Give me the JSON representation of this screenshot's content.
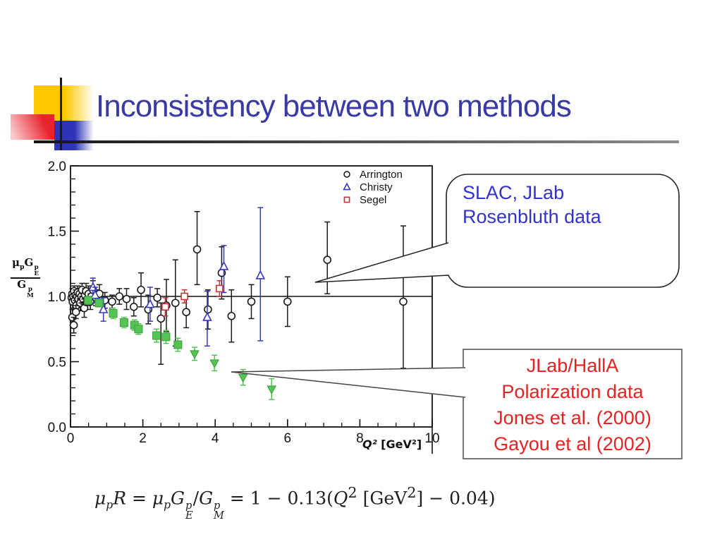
{
  "slide": {
    "title": "Inconsistency between two methods",
    "background_color": "#ffffff",
    "title_color": "#3a3aa4"
  },
  "callouts": {
    "rosenbluth": {
      "line1": "SLAC, JLab",
      "line2": "Rosenbluth data",
      "text_color": "#3333cc"
    },
    "polarization": {
      "line1": "JLab/HallA",
      "line2": "Polarization data",
      "line3": "Jones et al. (2000)",
      "line4": "Gayou et al (2002)",
      "text_color": "#e62222"
    }
  },
  "formula": {
    "p1": "μ",
    "p1sub": "p",
    "p2": "R = ",
    "p3": "μ",
    "p3sub": "p",
    "p4": "G",
    "p4sup": "p",
    "p4sub": "E",
    "p5": "/",
    "p6": "G",
    "p6sup": "p",
    "p6sub": "M",
    "p7": " = 1 − 0.13(",
    "p8": "Q",
    "p8sup": "2",
    "p9": " [GeV",
    "p9sup": "2",
    "p10": "] − 0.04)"
  },
  "ylabel_parts": {
    "num1": "μ",
    "num1sub": "p",
    "num2": "G",
    "num2sup": "p",
    "num2sub": "E",
    "den1": "G",
    "den1sup": "p",
    "den1sub": "M"
  },
  "xlabel_parts": {
    "q": "Q²",
    "unit": " [GeV²]"
  },
  "chart_data": {
    "type": "scatter",
    "title": "",
    "xlabel": "Q² [GeV²]",
    "ylabel": "μp GEp / GMp",
    "xlim": [
      0,
      10
    ],
    "ylim": [
      0,
      2
    ],
    "xticks": [
      0,
      2,
      4,
      6,
      8,
      10
    ],
    "xtick_labels": [
      "0",
      "2",
      "4",
      "6",
      "8",
      "10"
    ],
    "yticks": [
      0,
      0.5,
      1.0,
      1.5,
      2.0
    ],
    "ytick_labels": [
      "0.0",
      "0.5",
      "1.0",
      "1.5",
      "2.0"
    ],
    "minor_x_step": 0.5,
    "minor_y_step": 0.1,
    "grid": false,
    "ref_line": 1.0,
    "legend_position": "top-center-inside",
    "legend": [
      "Arrington",
      "Christy",
      "Segel"
    ],
    "series": [
      {
        "name": "Arrington",
        "marker": "circle",
        "color": "#1a1a1a",
        "open": true,
        "in_legend": true,
        "points": [
          [
            0.03,
            0.99,
            0.04,
            0.04
          ],
          [
            0.05,
            1.02,
            0.04,
            0.04
          ],
          [
            0.06,
            0.96,
            0.05,
            0.05
          ],
          [
            0.08,
            1.0,
            0.03,
            0.03
          ],
          [
            0.1,
            1.04,
            0.04,
            0.04
          ],
          [
            0.12,
            0.97,
            0.05,
            0.05
          ],
          [
            0.14,
            1.01,
            0.04,
            0.04
          ],
          [
            0.16,
            0.93,
            0.06,
            0.06
          ],
          [
            0.18,
            1.0,
            0.04,
            0.04
          ],
          [
            0.2,
            1.03,
            0.05,
            0.05
          ],
          [
            0.22,
            0.98,
            0.04,
            0.04
          ],
          [
            0.25,
            1.02,
            0.04,
            0.04
          ],
          [
            0.27,
            0.95,
            0.06,
            0.06
          ],
          [
            0.3,
            1.0,
            0.05,
            0.05
          ],
          [
            0.32,
            1.05,
            0.05,
            0.05
          ],
          [
            0.35,
            0.98,
            0.04,
            0.04
          ],
          [
            0.38,
            0.91,
            0.07,
            0.07
          ],
          [
            0.4,
            1.01,
            0.05,
            0.05
          ],
          [
            0.43,
            1.04,
            0.06,
            0.06
          ],
          [
            0.46,
            0.98,
            0.05,
            0.05
          ],
          [
            0.5,
            1.02,
            0.06,
            0.06
          ],
          [
            0.55,
            0.96,
            0.06,
            0.06
          ],
          [
            0.58,
            1.0,
            0.05,
            0.05
          ],
          [
            0.62,
            1.05,
            0.07,
            0.07
          ],
          [
            0.7,
            0.99,
            0.06,
            0.06
          ],
          [
            0.8,
            1.02,
            0.07,
            0.07
          ],
          [
            0.05,
            0.84,
            0.06,
            0.06
          ],
          [
            0.09,
            0.78,
            0.06,
            0.06
          ],
          [
            0.15,
            0.88,
            0.05,
            0.05
          ],
          [
            0.95,
            0.97,
            0.06,
            0.06
          ],
          [
            1.15,
            0.96,
            0.05,
            0.05
          ],
          [
            1.35,
            1.0,
            0.06,
            0.06
          ],
          [
            1.55,
            0.98,
            0.08,
            0.08
          ],
          [
            1.75,
            0.92,
            0.07,
            0.07
          ],
          [
            1.95,
            1.05,
            0.13,
            0.13
          ],
          [
            2.15,
            0.9,
            0.11,
            0.11
          ],
          [
            2.4,
            0.99,
            0.07,
            0.07
          ],
          [
            2.5,
            0.83,
            0.35,
            0.12
          ],
          [
            2.65,
            0.93,
            0.2,
            0.2
          ],
          [
            2.9,
            0.95,
            0.33,
            0.33
          ],
          [
            3.2,
            0.88,
            0.12,
            0.12
          ],
          [
            3.5,
            1.36,
            0.27,
            0.29
          ],
          [
            3.8,
            0.9,
            0.15,
            0.15
          ],
          [
            4.18,
            1.18,
            0.2,
            0.2
          ],
          [
            4.45,
            0.85,
            0.2,
            0.2
          ],
          [
            5.0,
            0.96,
            0.13,
            0.13
          ],
          [
            6.0,
            0.96,
            0.19,
            0.19
          ],
          [
            7.1,
            1.28,
            0.26,
            0.29
          ],
          [
            9.2,
            0.96,
            0.51,
            0.58
          ]
        ]
      },
      {
        "name": "Christy",
        "marker": "triangle-up",
        "color": "#3838bc",
        "open": true,
        "in_legend": true,
        "points": [
          [
            0.62,
            1.07,
            0.07,
            0.07
          ],
          [
            0.68,
            1.01,
            0.06,
            0.06
          ],
          [
            0.91,
            0.9,
            0.09,
            0.09
          ],
          [
            2.2,
            0.94,
            0.13,
            0.13
          ],
          [
            3.78,
            0.84,
            0.22,
            0.2
          ],
          [
            4.24,
            1.23,
            0.2,
            0.16
          ],
          [
            5.25,
            1.16,
            0.5,
            0.52
          ]
        ]
      },
      {
        "name": "Segel",
        "marker": "square",
        "color": "#c83434",
        "open": true,
        "in_legend": true,
        "points": [
          [
            2.62,
            0.92,
            0.07,
            0.07
          ],
          [
            3.15,
            1.0,
            0.05,
            0.05
          ],
          [
            4.12,
            1.06,
            0.06,
            0.06
          ]
        ]
      },
      {
        "name": "Jones et al. (2000) polarization",
        "marker": "filled-square",
        "color": "#55c455",
        "open": false,
        "in_legend": false,
        "points": [
          [
            0.49,
            0.97,
            0.03,
            0.03
          ],
          [
            0.79,
            0.95,
            0.03,
            0.03
          ],
          [
            1.18,
            0.87,
            0.04,
            0.04
          ],
          [
            1.48,
            0.8,
            0.04,
            0.04
          ],
          [
            1.77,
            0.78,
            0.04,
            0.04
          ],
          [
            1.88,
            0.75,
            0.04,
            0.04
          ],
          [
            2.38,
            0.7,
            0.05,
            0.05
          ],
          [
            2.64,
            0.69,
            0.05,
            0.05
          ],
          [
            2.97,
            0.63,
            0.05,
            0.05
          ]
        ]
      },
      {
        "name": "Gayou et al (2002) polarization",
        "marker": "filled-triangle-down",
        "color": "#55c455",
        "open": false,
        "in_legend": false,
        "points": [
          [
            3.43,
            0.56,
            0.05,
            0.05
          ],
          [
            3.98,
            0.49,
            0.06,
            0.06
          ],
          [
            4.77,
            0.38,
            0.06,
            0.06
          ],
          [
            5.56,
            0.29,
            0.08,
            0.08
          ]
        ]
      }
    ],
    "annotations": [
      "SLAC, JLab Rosenbluth data -> points near ratio 1.0",
      "JLab/HallA Polarization data -> descending green points"
    ]
  }
}
